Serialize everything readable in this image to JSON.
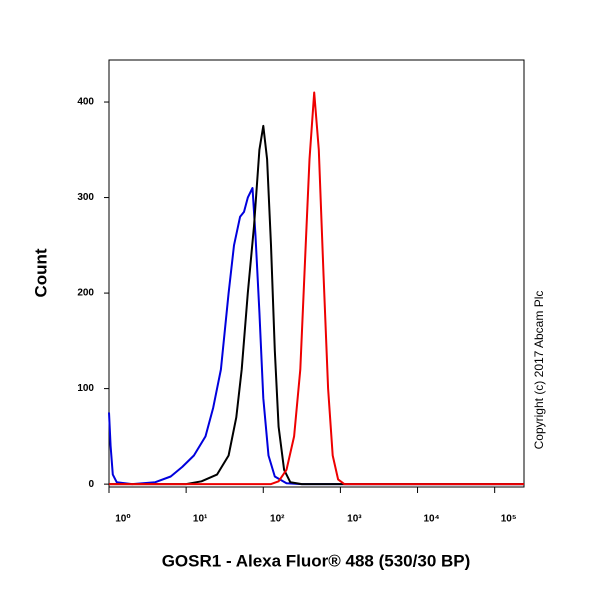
{
  "chart_data": {
    "type": "histogram-overlay",
    "x_label": "GOSR1 - Alexa Fluor® 488 (530/30 BP)",
    "y_label": "Count",
    "annotation": "Copyright (c) 2017 Abcam Plc",
    "x_log": true,
    "xlim": [
      1,
      240000
    ],
    "ylim": [
      -3,
      444
    ],
    "xticks": [
      {
        "value": 1,
        "label": "10⁰"
      },
      {
        "value": 10,
        "label": "10¹"
      },
      {
        "value": 100,
        "label": "10²"
      },
      {
        "value": 1000,
        "label": "10³"
      },
      {
        "value": 10000,
        "label": "10⁴"
      },
      {
        "value": 100000,
        "label": "10⁵"
      }
    ],
    "yticks": [
      0,
      100,
      200,
      300,
      400
    ],
    "series": [
      {
        "color": "#0000dd",
        "x": [
          1,
          1.05,
          1.12,
          1.26,
          2.0,
          3.98,
          6.31,
          8.91,
          12.6,
          17.8,
          22.4,
          28.2,
          35.5,
          41.7,
          50.1,
          56.2,
          63.1,
          72.4,
          79.4,
          89.1,
          100,
          117,
          141,
          200,
          316,
          240000
        ],
        "values": [
          75,
          40,
          10,
          2,
          0,
          2,
          8,
          18,
          30,
          50,
          80,
          120,
          200,
          250,
          280,
          285,
          300,
          310,
          260,
          180,
          90,
          30,
          8,
          1,
          0,
          0
        ]
      },
      {
        "color": "#000000",
        "x": [
          1,
          10,
          15.8,
          25.1,
          35.5,
          44.7,
          52.5,
          63.1,
          75.9,
          89.1,
          100,
          112,
          126,
          141,
          158,
          186,
          224,
          316,
          240000
        ],
        "values": [
          0,
          0,
          3,
          10,
          30,
          70,
          120,
          200,
          270,
          350,
          375,
          340,
          250,
          140,
          60,
          15,
          2,
          0,
          0
        ]
      },
      {
        "color": "#ee0000",
        "x": [
          1,
          126,
          158,
          200,
          251,
          302,
          355,
          398,
          457,
          525,
          603,
          692,
          794,
          933,
          1122,
          240000
        ],
        "values": [
          0,
          0,
          3,
          15,
          50,
          120,
          250,
          340,
          410,
          350,
          220,
          100,
          30,
          5,
          0,
          0
        ]
      }
    ]
  }
}
